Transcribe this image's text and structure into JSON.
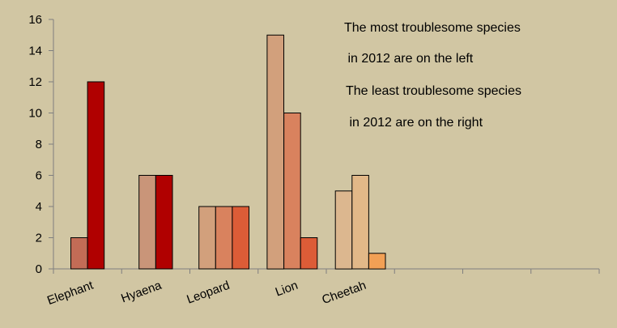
{
  "chart_data": {
    "type": "bar",
    "background_color": "#d1c6a3",
    "categories": [
      "Elephant",
      "Hyaena",
      "Leopard",
      "Lion",
      "Cheetah",
      "",
      "",
      ""
    ],
    "ylim": [
      0,
      16
    ],
    "yticks": [
      0,
      2,
      4,
      6,
      8,
      10,
      12,
      14,
      16
    ],
    "grid": false,
    "legend": "none",
    "bars": [
      {
        "category": "Elephant",
        "value": 2,
        "color": "#c36c56"
      },
      {
        "category": "Elephant",
        "value": 12,
        "color": "#b00000"
      },
      {
        "category": "Hyaena",
        "value": 6,
        "color": "#c99579"
      },
      {
        "category": "Hyaena",
        "value": 6,
        "color": "#b00000"
      },
      {
        "category": "Leopard",
        "value": 4,
        "color": "#d2a07c"
      },
      {
        "category": "Leopard",
        "value": 4,
        "color": "#d9825e"
      },
      {
        "category": "Leopard",
        "value": 4,
        "color": "#dc5c37"
      },
      {
        "category": "Lion",
        "value": 15,
        "color": "#d2a07c"
      },
      {
        "category": "Lion",
        "value": 10,
        "color": "#d9825e"
      },
      {
        "category": "Lion",
        "value": 2,
        "color": "#dc5c37"
      },
      {
        "category": "Cheetah",
        "value": 5,
        "color": "#dcb78f"
      },
      {
        "category": "Cheetah",
        "value": 6,
        "color": "#e2b888"
      },
      {
        "category": "Cheetah",
        "value": 1,
        "color": "#f2a055"
      }
    ],
    "annotations": [
      {
        "line1": "The most troublesome species",
        "line2": " in 2012 are on the left"
      },
      {
        "line1": "The least troublesome species",
        "line2": " in 2012 are on the right"
      }
    ]
  }
}
